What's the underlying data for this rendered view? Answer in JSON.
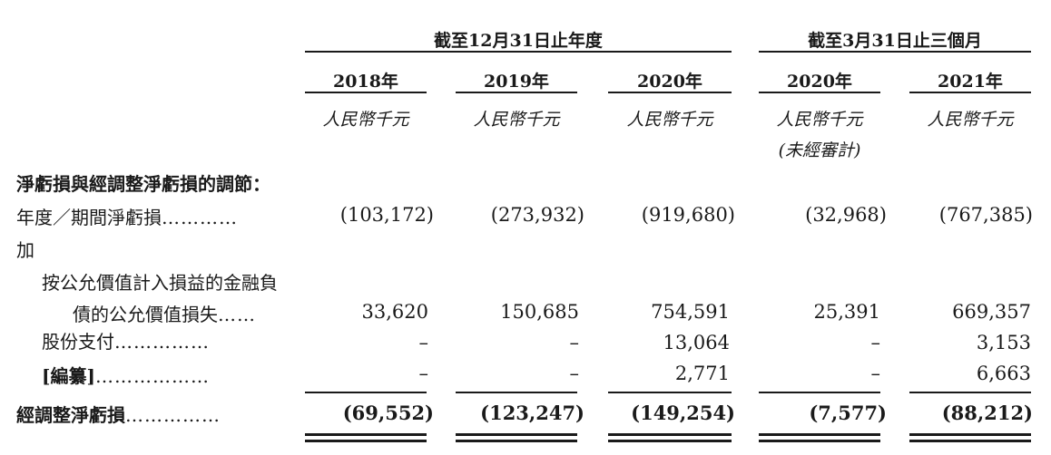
{
  "groups": {
    "year_ended": "截至12月31日止年度",
    "three_months": "截至3月31日止三個月"
  },
  "columns": [
    {
      "year": "2018年",
      "unit": "人民幣千元",
      "note": ""
    },
    {
      "year": "2019年",
      "unit": "人民幣千元",
      "note": ""
    },
    {
      "year": "2020年",
      "unit": "人民幣千元",
      "note": ""
    },
    {
      "year": "2020年",
      "unit": "人民幣千元",
      "note": "(未經審計)"
    },
    {
      "year": "2021年",
      "unit": "人民幣千元",
      "note": ""
    }
  ],
  "section_title": "淨虧損與經調整淨虧損的調節：",
  "rows": {
    "net_loss": {
      "label": "年度／期間淨虧損",
      "dots": "…………",
      "values": [
        "(103,172)",
        "(273,932)",
        "(919,680)",
        "(32,968)",
        "(767,385)"
      ]
    },
    "add_label": "加",
    "fair_value": {
      "label_line1": "按公允價值計入損益的金融負",
      "label_line2": "債的公允價值損失",
      "dots": "……",
      "values": [
        "33,620",
        "150,685",
        "754,591",
        "25,391",
        "669,357"
      ]
    },
    "share_payment": {
      "label": "股份支付",
      "dots": "……………",
      "values": [
        "–",
        "–",
        "13,064",
        "–",
        "3,153"
      ]
    },
    "redacted": {
      "label": "[編纂]",
      "dots": "………………",
      "values": [
        "–",
        "–",
        "2,771",
        "–",
        "6,663"
      ]
    },
    "adjusted": {
      "label": "經調整淨虧損",
      "dots": "……………",
      "values": [
        "(69,552)",
        "(123,247)",
        "(149,254)",
        "(7,577)",
        "(88,212)"
      ]
    }
  }
}
